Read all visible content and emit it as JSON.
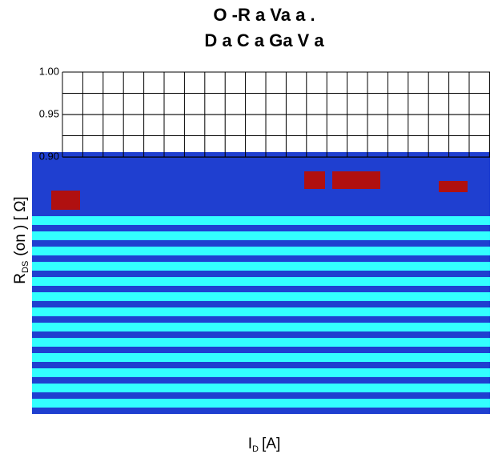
{
  "chart_data": {
    "type": "line",
    "title": [
      "O -R a Va a .",
      "D a C a Ga V a"
    ],
    "y_label": {
      "main": "R",
      "sub": "DS",
      "rest": "(on ) [ Ω]"
    },
    "x_label": {
      "main": "I",
      "sub": "D",
      "rest": "[A]"
    },
    "ylim": [
      0.6,
      1.0
    ],
    "yticks": [
      {
        "value": 1.0,
        "label": "1.00"
      },
      0.95,
      {
        "value": 0.9,
        "label": "0.90"
      }
    ],
    "grid": true
  }
}
